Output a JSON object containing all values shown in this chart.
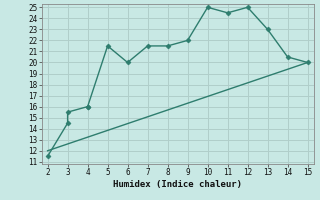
{
  "xlabel": "Humidex (Indice chaleur)",
  "line1_x": [
    2,
    3,
    3,
    4,
    4,
    5,
    6,
    7,
    8,
    9,
    10,
    11,
    12,
    13,
    14,
    15
  ],
  "line1_y": [
    11.5,
    14.5,
    15.5,
    16,
    16,
    21.5,
    20,
    21.5,
    21.5,
    22,
    25,
    24.5,
    25,
    23,
    20.5,
    20
  ],
  "line2_x": [
    2,
    15
  ],
  "line2_y": [
    12,
    20
  ],
  "line_color": "#2e7d6e",
  "bg_color": "#c8e8e4",
  "grid_color": "#b0ceca",
  "xlim": [
    2,
    15
  ],
  "ylim": [
    11,
    25
  ],
  "xticks": [
    2,
    3,
    4,
    5,
    6,
    7,
    8,
    9,
    10,
    11,
    12,
    13,
    14,
    15
  ],
  "yticks": [
    11,
    12,
    13,
    14,
    15,
    16,
    17,
    18,
    19,
    20,
    21,
    22,
    23,
    24,
    25
  ],
  "markersize": 2.5,
  "linewidth": 1.0,
  "tick_fontsize": 5.5,
  "xlabel_fontsize": 6.5
}
